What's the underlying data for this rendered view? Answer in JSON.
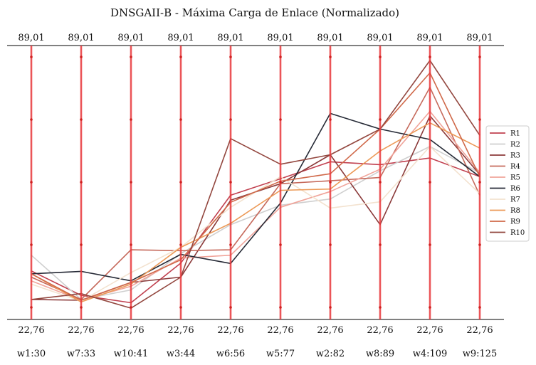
{
  "chart_data": {
    "type": "line",
    "subtype": "parallel-coordinates",
    "title": "DNSGAII-B - Máxima Carga de Enlace (Normalizado)",
    "categories": [
      "w1:30",
      "w7:33",
      "w10:41",
      "w3:44",
      "w6:56",
      "w5:77",
      "w2:82",
      "w8:89",
      "w4:109",
      "w9:125"
    ],
    "axis_top_labels": [
      "89,01",
      "89,01",
      "89,01",
      "89,01",
      "89,01",
      "89,01",
      "89,01",
      "89,01",
      "89,01",
      "89,01"
    ],
    "axis_bottom_labels": [
      "22,76",
      "22,76",
      "22,76",
      "22,76",
      "22,76",
      "22,76",
      "22,76",
      "22,76",
      "22,76",
      "22,76"
    ],
    "ylim": [
      22.76,
      89.01
    ],
    "axis_color": "#e8383b",
    "legend_position": "right",
    "series": [
      {
        "name": "R1",
        "color": "#c1404f",
        "values": [
          34.5,
          28.6,
          26.8,
          36.4,
          52.8,
          56.8,
          60.9,
          60.2,
          61.8,
          57.3
        ]
      },
      {
        "name": "R2",
        "color": "#cfcfcf",
        "values": [
          38.3,
          27.6,
          29.9,
          38.7,
          45.7,
          50.4,
          51.9,
          58.7,
          64.6,
          58.2
        ]
      },
      {
        "name": "R3",
        "color": "#8b3a3a",
        "values": [
          27.6,
          27.4,
          31.7,
          33.0,
          51.6,
          55.6,
          62.6,
          45.7,
          72.0,
          57.8
        ]
      },
      {
        "name": "R4",
        "color": "#c66a5c",
        "values": [
          33.0,
          27.6,
          39.6,
          39.4,
          39.6,
          55.6,
          56.3,
          57.1,
          78.9,
          52.8
        ]
      },
      {
        "name": "R5",
        "color": "#f0a49a",
        "values": [
          32.1,
          27.4,
          30.8,
          37.6,
          38.3,
          49.9,
          53.7,
          59.1,
          73.1,
          58.3
        ]
      },
      {
        "name": "R6",
        "color": "#262a36",
        "values": [
          33.8,
          34.4,
          32.1,
          38.5,
          36.3,
          50.9,
          72.6,
          68.8,
          66.3,
          57.3
        ]
      },
      {
        "name": "R7",
        "color": "#f3e2cf",
        "values": [
          31.3,
          27.2,
          34.1,
          40.2,
          49.9,
          57.3,
          49.7,
          51.2,
          64.6,
          53.2
        ]
      },
      {
        "name": "R8",
        "color": "#ec9a58",
        "values": [
          33.8,
          27.0,
          31.3,
          40.2,
          46.0,
          54.0,
          54.3,
          63.5,
          70.3,
          64.2
        ]
      },
      {
        "name": "R9",
        "color": "#d0694a",
        "values": [
          33.8,
          27.4,
          31.7,
          37.2,
          51.1,
          56.2,
          58.0,
          68.8,
          82.4,
          57.3
        ]
      },
      {
        "name": "R10",
        "color": "#93473f",
        "values": [
          27.6,
          29.0,
          25.5,
          33.0,
          66.5,
          60.3,
          62.6,
          68.8,
          85.4,
          67.3
        ]
      }
    ]
  }
}
